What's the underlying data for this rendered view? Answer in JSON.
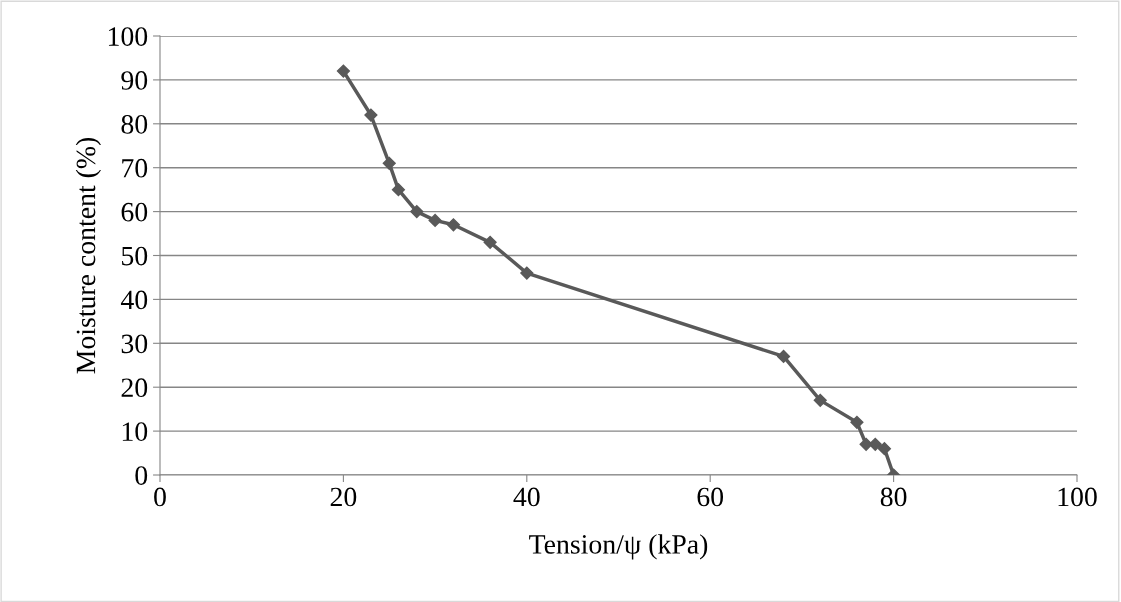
{
  "chart_data": {
    "type": "line",
    "xlabel": "Tension/ψ (kPa)",
    "ylabel": "Moisture content (%)",
    "x": [
      20,
      23,
      25,
      26,
      28,
      30,
      32,
      36,
      40,
      68,
      72,
      76,
      77,
      78,
      79,
      80
    ],
    "series": [
      {
        "color": "#595959",
        "values": [
          92,
          82,
          71,
          65,
          60,
          58,
          57,
          53,
          46,
          27,
          17,
          12,
          7,
          7,
          6,
          0
        ]
      }
    ],
    "xlim": [
      0,
      100
    ],
    "xticks": [
      0,
      20,
      40,
      60,
      80,
      100
    ],
    "ylim": [
      0,
      100
    ],
    "yticks": [
      0,
      10,
      20,
      30,
      40,
      50,
      60,
      70,
      80,
      90,
      100
    ],
    "grid": "y",
    "marker": "diamond",
    "line_style": "solid"
  }
}
